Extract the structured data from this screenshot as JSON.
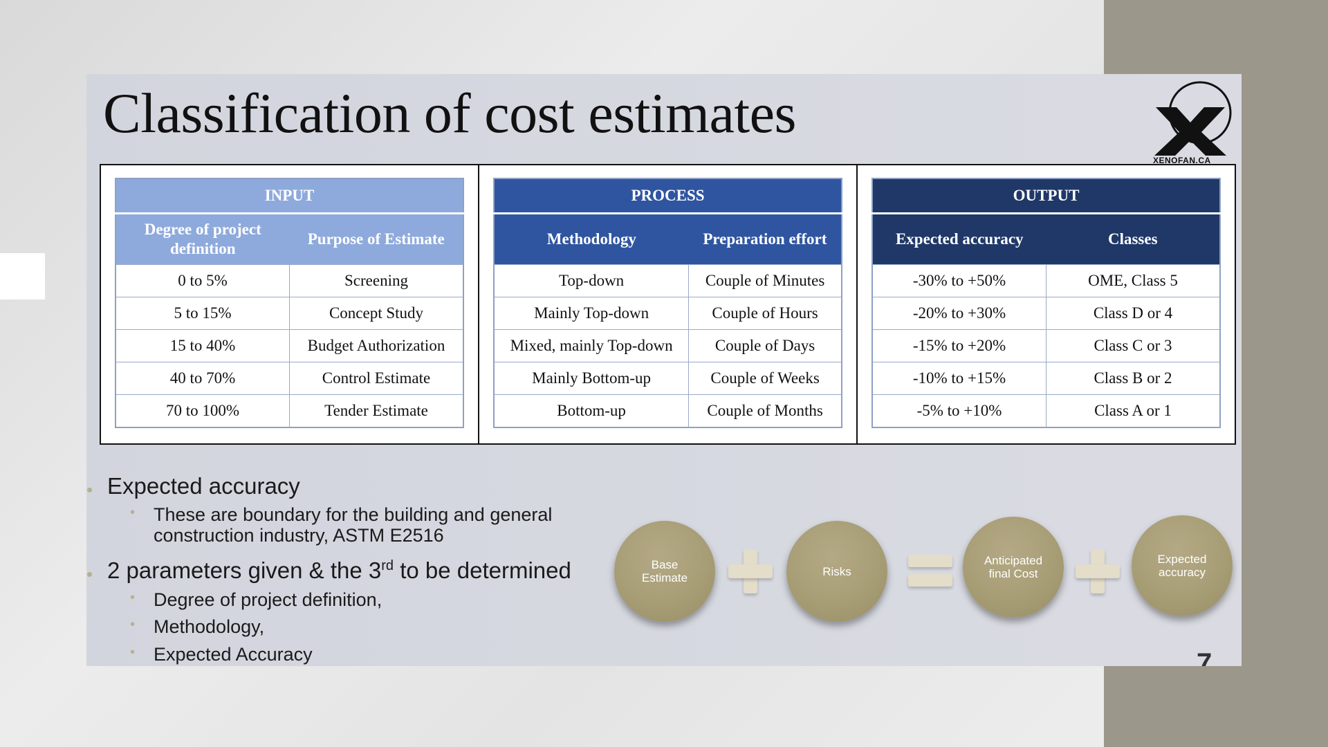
{
  "title": "Classification of cost estimates",
  "logo": {
    "text": "XENOFAN.CA",
    "icon": "xenofan-x-logo"
  },
  "table": {
    "input": {
      "group": "INPUT",
      "headers": [
        "Degree of project definition",
        "Purpose of Estimate"
      ],
      "rows": [
        [
          "0 to 5%",
          "Screening"
        ],
        [
          "5 to 15%",
          "Concept Study"
        ],
        [
          "15 to 40%",
          "Budget Authorization"
        ],
        [
          "40 to 70%",
          "Control Estimate"
        ],
        [
          "70 to 100%",
          "Tender Estimate"
        ]
      ]
    },
    "process": {
      "group": "PROCESS",
      "headers": [
        "Methodology",
        "Preparation effort"
      ],
      "rows": [
        [
          "Top-down",
          "Couple of Minutes"
        ],
        [
          "Mainly Top-down",
          "Couple of Hours"
        ],
        [
          "Mixed, mainly Top-down",
          "Couple of Days"
        ],
        [
          "Mainly Bottom-up",
          "Couple of Weeks"
        ],
        [
          "Bottom-up",
          "Couple of Months"
        ]
      ]
    },
    "output": {
      "group": "OUTPUT",
      "headers": [
        "Expected accuracy",
        "Classes"
      ],
      "rows": [
        [
          "-30% to +50%",
          "OME, Class 5"
        ],
        [
          "-20% to +30%",
          "Class D or 4"
        ],
        [
          "-15% to +20%",
          "Class C or 3"
        ],
        [
          "-10% to +15%",
          "Class B or 2"
        ],
        [
          "-5% to +10%",
          "Class A or 1"
        ]
      ]
    }
  },
  "bullets": {
    "b1": "Expected accuracy",
    "b1_sub_line1": "These are boundary for the building and general",
    "b1_sub_line2": "construction industry, ASTM E2516",
    "b2_pre": "2 parameters given & the 3",
    "b2_sup": "rd",
    "b2_post": " to be determined",
    "b2_subs": [
      "Degree of project definition,",
      "Methodology,",
      "Expected Accuracy"
    ]
  },
  "equation": {
    "c1": "Base Estimate",
    "c2": "Risks",
    "c3": "Anticipated final Cost",
    "c4": "Expected accuracy",
    "colors": {
      "circle": "#a69c74",
      "operator": "#e3ddc9"
    }
  },
  "page_number": "7",
  "colors": {
    "input_header": "#8eaadc",
    "process_header": "#2f55a0",
    "output_header": "#1f3868",
    "side_band": "#9b978a"
  }
}
